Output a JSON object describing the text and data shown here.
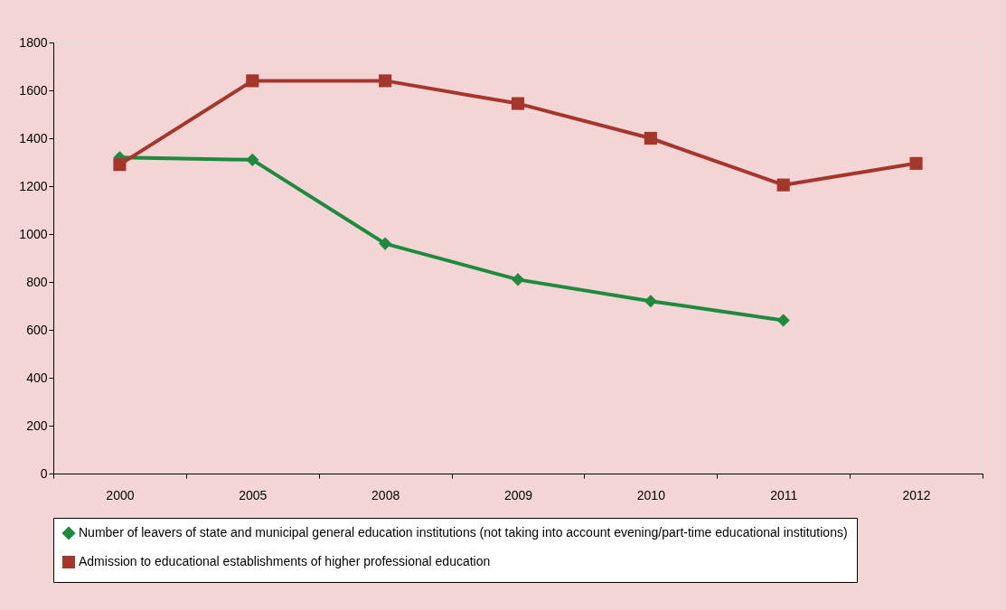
{
  "chart_data": {
    "type": "line",
    "categories": [
      "2000",
      "2005",
      "2008",
      "2009",
      "2010",
      "2011",
      "2012"
    ],
    "ylim": [
      0,
      1800
    ],
    "yticks": [
      0,
      200,
      400,
      600,
      800,
      1000,
      1200,
      1400,
      1600,
      1800
    ],
    "grid": false,
    "legend": "bottom",
    "line_style": "solid",
    "series": [
      {
        "name": "Number of leavers of state and municipal general education institutions (not taking into account evening/part-time educational institutions)",
        "color": "#1e8a3e",
        "marker": "diamond",
        "values": [
          1320,
          1310,
          960,
          810,
          720,
          640,
          null
        ]
      },
      {
        "name": "Admission to educational establishments of higher professional education",
        "color": "#a5362b",
        "marker": "square",
        "values": [
          1290,
          1640,
          1640,
          1545,
          1400,
          1205,
          1295
        ]
      }
    ]
  }
}
